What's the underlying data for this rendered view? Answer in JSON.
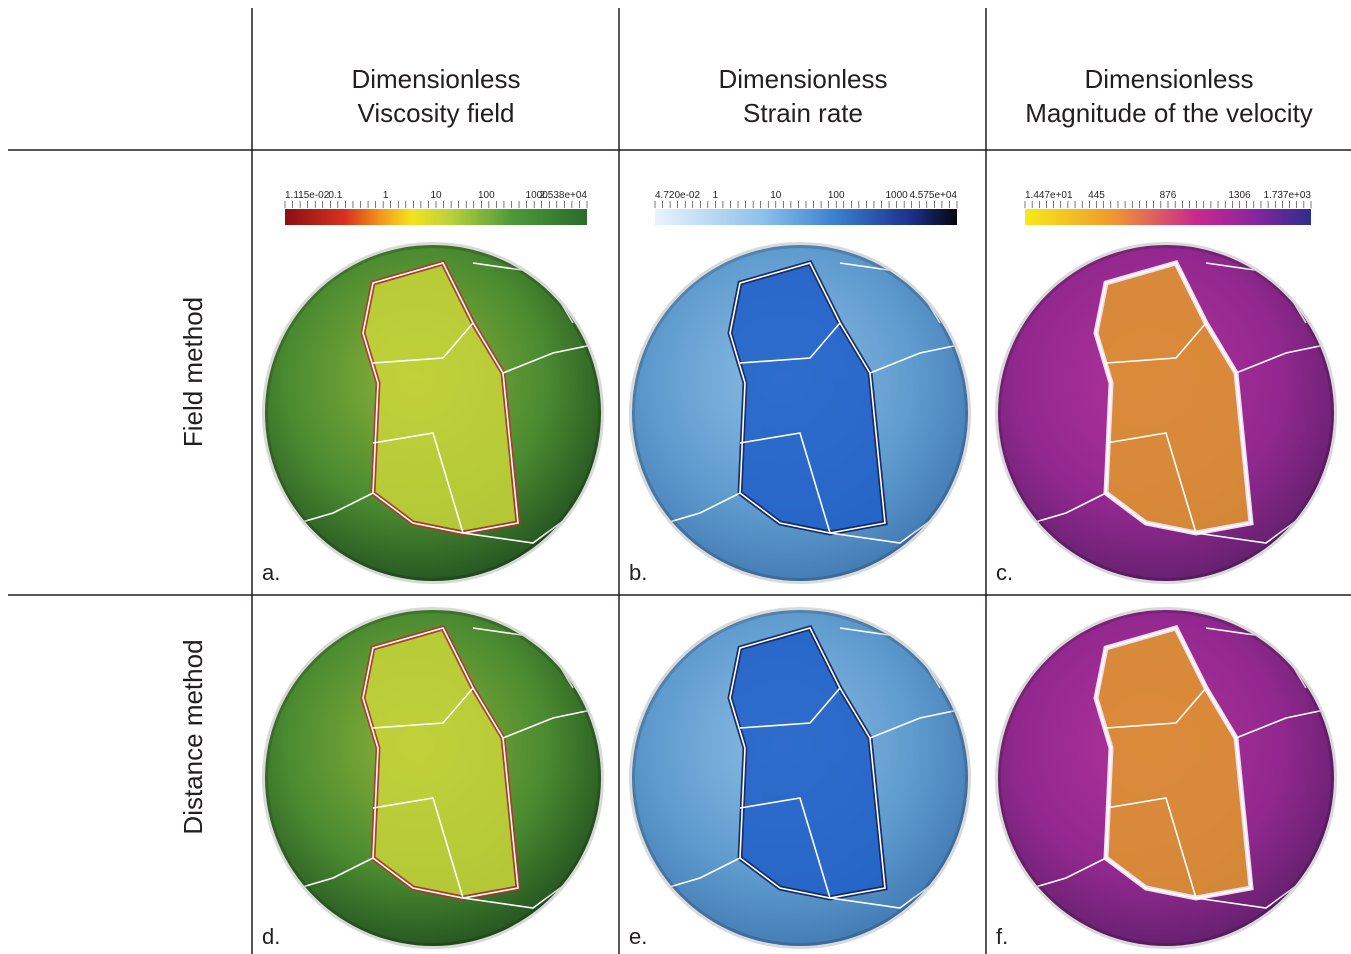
{
  "header": {
    "columns": [
      {
        "line1": "Dimensionless",
        "line2": "Viscosity field",
        "colorbar": [
          "1.115e-02",
          "0.1",
          "1",
          "10",
          "100",
          "1000",
          "2.538e+04"
        ]
      },
      {
        "line1": "Dimensionless",
        "line2": "Strain rate",
        "colorbar": [
          "4.720e-02",
          "1",
          "10",
          "100",
          "1000",
          "4.575e+04"
        ]
      },
      {
        "line1": "Dimensionless",
        "line2": "Magnitude of the velocity",
        "colorbar": [
          "1.447e+01",
          "445",
          "876",
          "1306",
          "1.737e+03"
        ]
      }
    ]
  },
  "rows": [
    {
      "label": "Field method",
      "panels": [
        "a.",
        "b.",
        "c."
      ]
    },
    {
      "label": "Distance method",
      "panels": [
        "d.",
        "e.",
        "f."
      ]
    }
  ]
}
